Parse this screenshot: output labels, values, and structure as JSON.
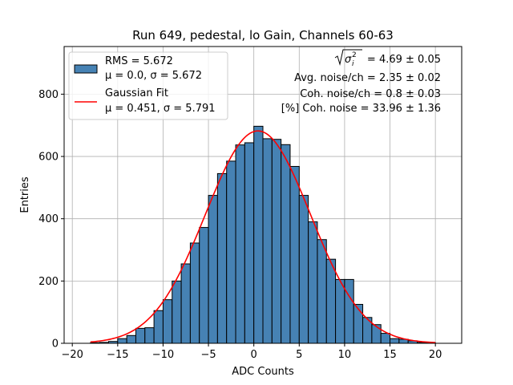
{
  "chart_data": {
    "type": "bar",
    "title": "Run 649, pedestal, lo Gain, Channels 60-63",
    "xlabel": "ADC Counts",
    "ylabel": "Entries",
    "xlim": [
      -20.9,
      22.9
    ],
    "ylim": [
      0,
      953
    ],
    "xticks": [
      -20,
      -15,
      -10,
      -5,
      0,
      5,
      10,
      15,
      20
    ],
    "yticks": [
      0,
      200,
      400,
      600,
      800
    ],
    "grid": true,
    "legend_position": "top-left",
    "bin_width": 1,
    "bins_start": [
      -18,
      -17,
      -16,
      -15,
      -14,
      -13,
      -12,
      -11,
      -10,
      -9,
      -8,
      -7,
      -6,
      -5,
      -4,
      -3,
      -2,
      -1,
      0,
      1,
      2,
      3,
      4,
      5,
      6,
      7,
      8,
      9,
      10,
      11,
      12,
      13,
      14,
      15,
      16,
      17,
      18,
      19
    ],
    "counts": [
      2,
      3,
      6,
      15,
      25,
      48,
      50,
      105,
      140,
      200,
      255,
      322,
      372,
      475,
      545,
      585,
      637,
      644,
      697,
      657,
      655,
      638,
      568,
      475,
      390,
      333,
      270,
      205,
      205,
      125,
      83,
      60,
      32,
      15,
      13,
      8,
      3,
      2
    ],
    "series": [
      {
        "name": "RMS = 5.672",
        "name_line2": "μ = 0.0, σ = 5.672",
        "kind": "histogram",
        "color": "#4682b4",
        "edge_color": "#000000"
      },
      {
        "name": "Gaussian Fit",
        "name_line2": "μ = 0.451, σ = 5.791",
        "kind": "line",
        "color": "#ff0000",
        "fit": {
          "amplitude": 682,
          "mu": 0.451,
          "sigma": 5.791,
          "x_range": [
            -18,
            20
          ]
        }
      }
    ],
    "annotations": {
      "sqrt_sigma_value": " = 4.69 ± 0.05",
      "avg_noise": "Avg. noise/ch = 2.35 ± 0.02",
      "coh_noise": "Coh. noise/ch = 0.8 ± 0.03",
      "pct_coh_noise": "[%] Coh. noise = 33.96 ± 1.36"
    }
  }
}
